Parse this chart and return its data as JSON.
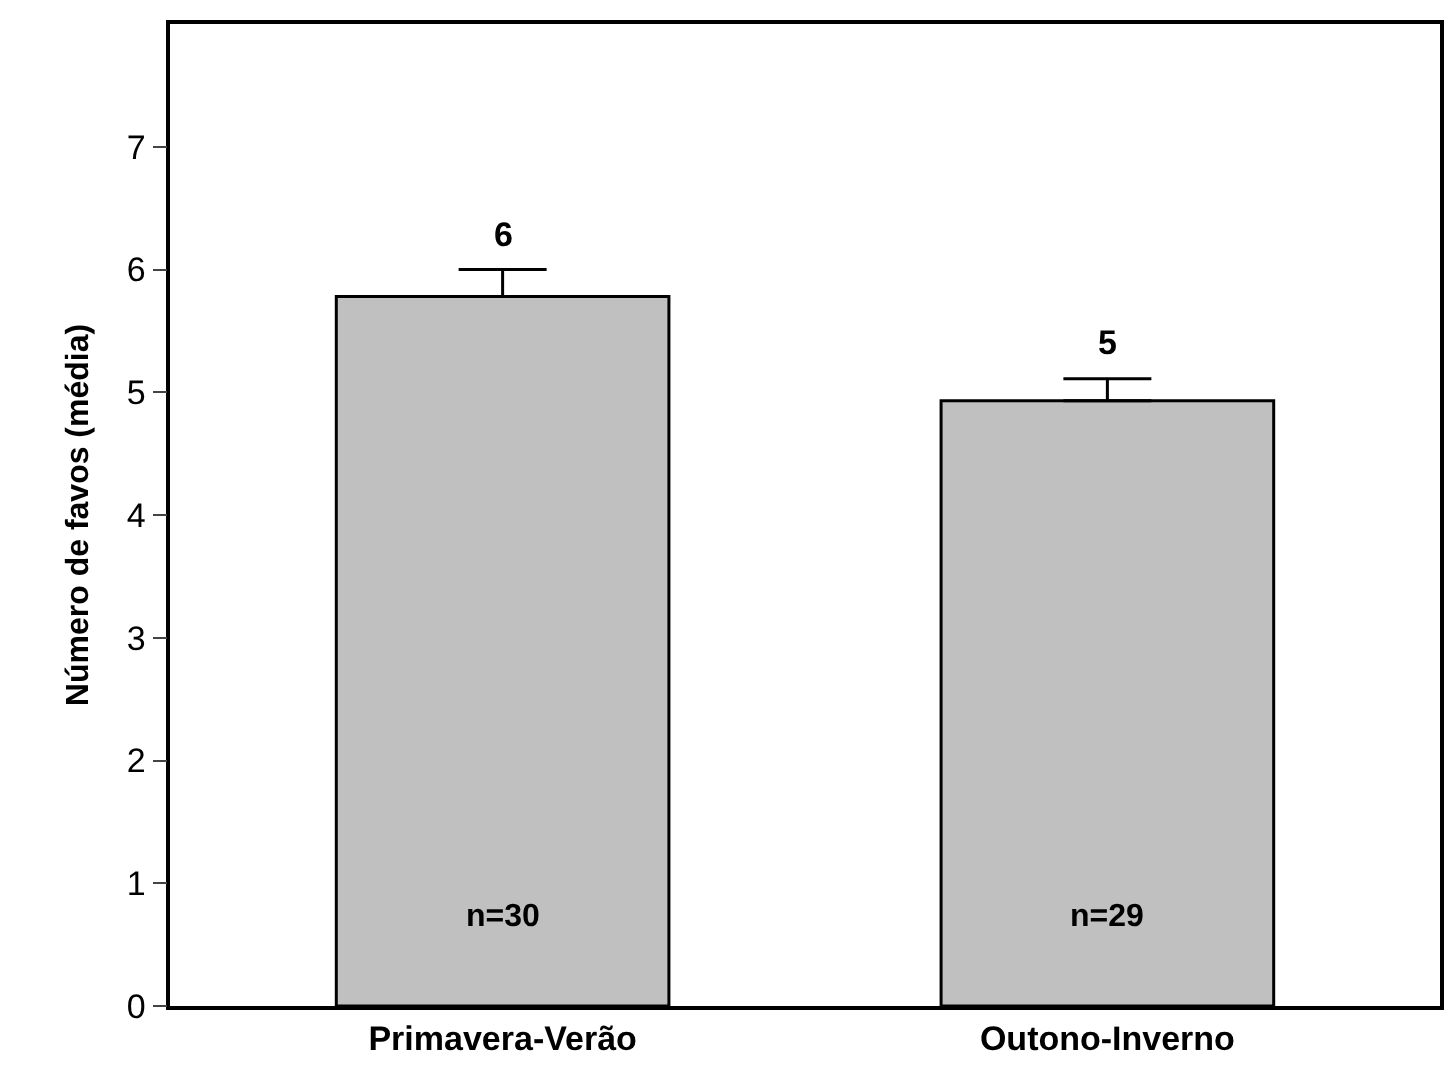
{
  "chart_data": {
    "type": "bar",
    "ylabel": "Número de favos (média)",
    "categories": [
      "Primavera-Verão",
      "Outono-Inverno"
    ],
    "values": [
      5.78,
      4.93
    ],
    "errors": [
      0.22,
      0.18
    ],
    "value_labels": [
      "6",
      "5"
    ],
    "color": "#c0c0c0",
    "ylim": [
      0,
      8
    ],
    "yticks": [
      0,
      1,
      2,
      3,
      4,
      5,
      6,
      7
    ],
    "annotations": [
      "n=30",
      "n=29"
    ]
  }
}
